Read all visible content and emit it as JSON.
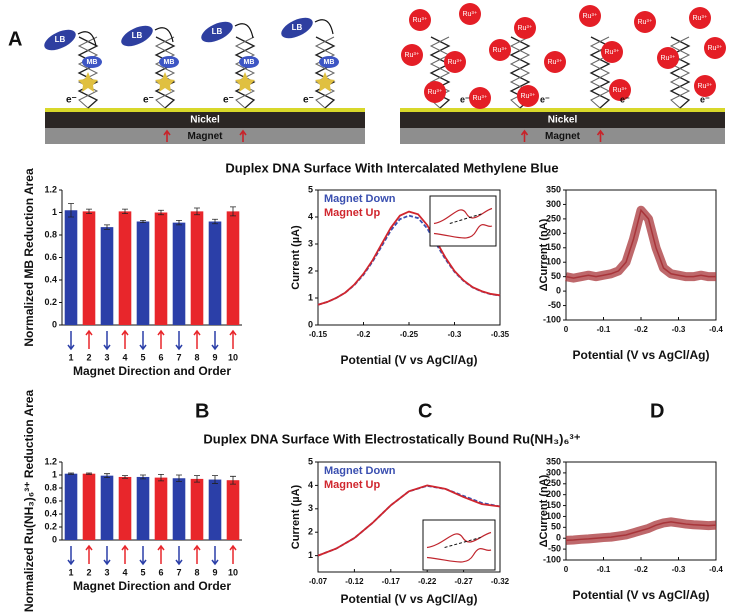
{
  "figure": {
    "panels": [
      "A",
      "B",
      "C",
      "D"
    ],
    "sections": [
      "Duplex DNA Surface With Intercalated Methylene Blue",
      "Duplex DNA Surface With Electrostatically Bound Ru(NH₃)₆³⁺"
    ],
    "left_schematic": {
      "nickel": "Nickel",
      "magnet": "Magnet",
      "lb": [
        "LB",
        "LB",
        "LB",
        "LB"
      ],
      "mb": [
        "MB",
        "MB",
        "MB",
        "MB"
      ],
      "electrons": [
        "e⁻",
        "e⁻",
        "e⁻",
        "e⁻"
      ]
    },
    "right_schematic": {
      "nickel": "Nickel",
      "magnet": "Magnet",
      "ions": [
        "Ru³⁺",
        "Ru³⁺",
        "Ru³⁺",
        "Ru³⁺",
        "Ru³⁺",
        "Ru³⁺",
        "Ru³⁺",
        "Ru³⁺",
        "Ru³⁺",
        "Ru³⁺",
        "Ru³⁺",
        "Ru³⁺",
        "Ru³⁺",
        "Ru³⁺",
        "Ru³⁺",
        "Ru³⁺",
        "Ru³⁺",
        "Ru³⁺"
      ],
      "electrons": [
        "e⁻",
        "e⁻",
        "e⁻",
        "e⁻"
      ]
    }
  },
  "chart_data": [
    {
      "type": "bar",
      "y_label": "Normalized MB Reduction Area",
      "x_label": "Magnet Direction and Order",
      "categories": [
        "1",
        "2",
        "3",
        "4",
        "5",
        "6",
        "7",
        "8",
        "9",
        "10"
      ],
      "values": [
        1.02,
        1.01,
        0.87,
        1.01,
        0.92,
        1.0,
        0.91,
        1.01,
        0.92,
        1.01
      ],
      "errors": [
        0.06,
        0.02,
        0.02,
        0.02,
        0.01,
        0.02,
        0.02,
        0.03,
        0.02,
        0.04
      ],
      "colors": [
        "#2b3fa8",
        "#e8262b",
        "#2b3fa8",
        "#e8262b",
        "#2b3fa8",
        "#e8262b",
        "#2b3fa8",
        "#e8262b",
        "#2b3fa8",
        "#e8262b"
      ],
      "ylim": [
        0,
        1.2
      ],
      "yticks": [
        0,
        0.2,
        0.4,
        0.6,
        0.8,
        1,
        1.2
      ]
    },
    {
      "type": "line",
      "y_label": "Current (µA)",
      "x_label": "Potential (V vs AgCl/Ag)",
      "x": [
        -0.15,
        -0.16,
        -0.17,
        -0.18,
        -0.19,
        -0.2,
        -0.21,
        -0.22,
        -0.23,
        -0.24,
        -0.25,
        -0.26,
        -0.27,
        -0.28,
        -0.29,
        -0.3,
        -0.31,
        -0.32,
        -0.33,
        -0.34,
        -0.35
      ],
      "series": [
        {
          "name": "Magnet Down",
          "color": "#3a4fb0",
          "line_style": "dashed",
          "values": [
            0.75,
            0.85,
            1.0,
            1.2,
            1.48,
            1.86,
            2.35,
            2.92,
            3.5,
            3.92,
            4.05,
            3.96,
            3.58,
            3.0,
            2.44,
            1.97,
            1.63,
            1.39,
            1.24,
            1.14,
            1.09
          ]
        },
        {
          "name": "Magnet Up",
          "color": "#d0262e",
          "line_style": "solid",
          "values": [
            0.75,
            0.85,
            1.0,
            1.2,
            1.5,
            1.9,
            2.4,
            3.0,
            3.6,
            4.05,
            4.2,
            4.1,
            3.7,
            3.1,
            2.5,
            2.0,
            1.65,
            1.4,
            1.25,
            1.15,
            1.1
          ]
        }
      ],
      "xlim": [
        -0.15,
        -0.35
      ],
      "xticks": [
        -0.15,
        -0.2,
        -0.25,
        -0.3,
        -0.35
      ],
      "ylim": [
        0,
        5
      ],
      "yticks": [
        0,
        1,
        2,
        3,
        4,
        5
      ],
      "legend": "upper left"
    },
    {
      "type": "line",
      "y_label": "ΔCurrent (nA)",
      "x_label": "Potential (V vs AgCl/Ag)",
      "color": "#a8353a",
      "x": [
        0,
        -0.02,
        -0.04,
        -0.06,
        -0.08,
        -0.1,
        -0.12,
        -0.14,
        -0.16,
        -0.18,
        -0.2,
        -0.22,
        -0.24,
        -0.26,
        -0.28,
        -0.3,
        -0.32,
        -0.34,
        -0.36,
        -0.38,
        -0.4
      ],
      "values": [
        50,
        45,
        50,
        55,
        50,
        55,
        60,
        70,
        100,
        180,
        280,
        250,
        150,
        80,
        60,
        55,
        50,
        50,
        55,
        50,
        50
      ],
      "xlim": [
        0,
        -0.4
      ],
      "xticks": [
        0,
        -0.1,
        -0.2,
        -0.3,
        -0.4
      ],
      "ylim": [
        -100,
        350
      ],
      "yticks": [
        -100,
        -50,
        0,
        50,
        100,
        150,
        200,
        250,
        300,
        350
      ]
    },
    {
      "type": "bar",
      "y_label": "Normalized Ru(NH₃)₆³⁺ Reduction Area",
      "x_label": "Magnet Direction and Order",
      "categories": [
        "1",
        "2",
        "3",
        "4",
        "5",
        "6",
        "7",
        "8",
        "9",
        "10"
      ],
      "values": [
        1.02,
        1.02,
        0.99,
        0.97,
        0.97,
        0.96,
        0.95,
        0.94,
        0.93,
        0.92
      ],
      "errors": [
        0.01,
        0.01,
        0.03,
        0.02,
        0.03,
        0.05,
        0.05,
        0.05,
        0.06,
        0.06
      ],
      "colors": [
        "#2b3fa8",
        "#e8262b",
        "#2b3fa8",
        "#e8262b",
        "#2b3fa8",
        "#e8262b",
        "#2b3fa8",
        "#e8262b",
        "#2b3fa8",
        "#e8262b"
      ],
      "ylim": [
        0,
        1.2
      ],
      "yticks": [
        0,
        0.2,
        0.4,
        0.6,
        0.8,
        1,
        1.2
      ]
    },
    {
      "type": "line",
      "y_label": "Current (µA)",
      "x_label": "Potential (V vs AgCl/Ag)",
      "x": [
        -0.07,
        -0.095,
        -0.12,
        -0.145,
        -0.17,
        -0.195,
        -0.22,
        -0.245,
        -0.27,
        -0.295,
        -0.32
      ],
      "series": [
        {
          "name": "Magnet Down",
          "color": "#3a4fb0",
          "line_style": "dashed",
          "values": [
            1.0,
            1.3,
            1.75,
            2.4,
            3.15,
            3.75,
            3.98,
            3.85,
            3.55,
            3.25,
            3.1
          ]
        },
        {
          "name": "Magnet Up",
          "color": "#d0262e",
          "line_style": "solid",
          "values": [
            1.0,
            1.3,
            1.75,
            2.4,
            3.15,
            3.75,
            4.0,
            3.85,
            3.5,
            3.2,
            3.1
          ]
        }
      ],
      "xlim": [
        -0.07,
        -0.32
      ],
      "xticks": [
        -0.07,
        -0.12,
        -0.17,
        -0.22,
        -0.27,
        -0.32
      ],
      "ylim": [
        0.3,
        5
      ],
      "yticks": [
        1,
        2,
        3,
        4,
        5
      ],
      "legend": "upper left"
    },
    {
      "type": "line",
      "y_label": "ΔCurrent (nA)",
      "x_label": "Potential (V vs AgCl/Ag)",
      "color": "#a8353a",
      "x": [
        0,
        -0.02,
        -0.04,
        -0.06,
        -0.08,
        -0.1,
        -0.12,
        -0.14,
        -0.16,
        -0.18,
        -0.2,
        -0.22,
        -0.24,
        -0.26,
        -0.28,
        -0.3,
        -0.32,
        -0.34,
        -0.36,
        -0.38,
        -0.4
      ],
      "values": [
        -10,
        -8,
        -5,
        -3,
        0,
        3,
        5,
        10,
        15,
        25,
        35,
        45,
        60,
        70,
        75,
        70,
        65,
        62,
        60,
        58,
        60
      ],
      "xlim": [
        0,
        -0.4
      ],
      "xticks": [
        0,
        -0.1,
        -0.2,
        -0.3,
        -0.4
      ],
      "ylim": [
        -100,
        350
      ],
      "yticks": [
        -100,
        -50,
        0,
        50,
        100,
        150,
        200,
        250,
        300,
        350
      ]
    }
  ]
}
